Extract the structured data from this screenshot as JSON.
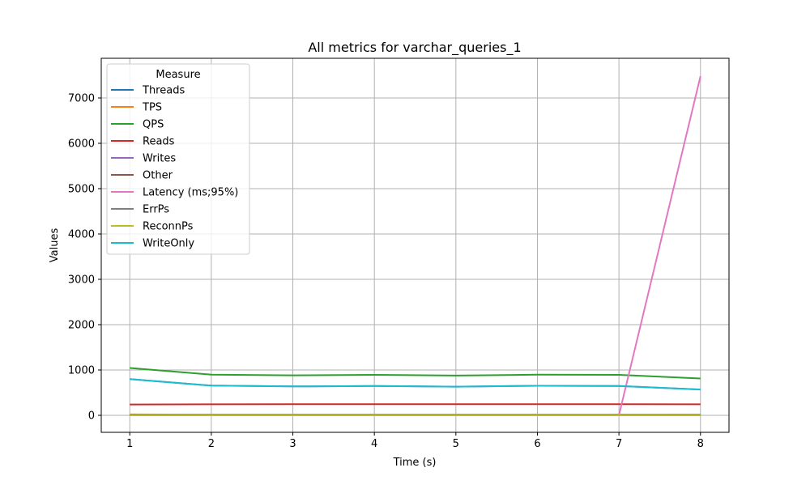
{
  "chart_data": {
    "type": "line",
    "title": "All metrics for varchar_queries_1",
    "xlabel": "Time (s)",
    "ylabel": "Values",
    "x": [
      1,
      2,
      3,
      4,
      5,
      6,
      7,
      8
    ],
    "xlim": [
      0.65,
      8.35
    ],
    "ylim": [
      -375,
      7875
    ],
    "xticks": [
      1,
      2,
      3,
      4,
      5,
      6,
      7,
      8
    ],
    "yticks": [
      0,
      1000,
      2000,
      3000,
      4000,
      5000,
      6000,
      7000
    ],
    "grid": true,
    "legend": {
      "title": "Measure",
      "placement": "top-left"
    },
    "series": [
      {
        "name": "Threads",
        "color": "#1f77b4",
        "values": [
          16,
          16,
          16,
          16,
          16,
          16,
          16,
          16
        ]
      },
      {
        "name": "TPS",
        "color": "#ff7f0e",
        "values": [
          20,
          16,
          16,
          16,
          16,
          16,
          16,
          14
        ]
      },
      {
        "name": "QPS",
        "color": "#2ca02c",
        "values": [
          1045,
          898,
          882,
          893,
          877,
          897,
          893,
          813
        ]
      },
      {
        "name": "Reads",
        "color": "#d62728",
        "values": [
          240,
          242,
          245,
          246,
          245,
          245,
          244,
          243
        ]
      },
      {
        "name": "Writes",
        "color": "#9467bd",
        "values": [
          800,
          656,
          637,
          647,
          632,
          652,
          649,
          570
        ]
      },
      {
        "name": "Other",
        "color": "#8c564b",
        "values": [
          5,
          0,
          0,
          0,
          0,
          0,
          0,
          0
        ]
      },
      {
        "name": "Latency (ms;95%)",
        "color": "#e377c2",
        "values": [
          0,
          0,
          0,
          0,
          0,
          0,
          0,
          7480
        ]
      },
      {
        "name": "ErrPs",
        "color": "#7f7f7f",
        "values": [
          0,
          0,
          0,
          0,
          0,
          0,
          0,
          0
        ]
      },
      {
        "name": "ReconnPs",
        "color": "#bcbd22",
        "values": [
          0,
          0,
          0,
          0,
          0,
          0,
          0,
          0
        ]
      },
      {
        "name": "WriteOnly",
        "color": "#17becf",
        "values": [
          800,
          656,
          637,
          647,
          632,
          652,
          649,
          570
        ]
      }
    ]
  }
}
